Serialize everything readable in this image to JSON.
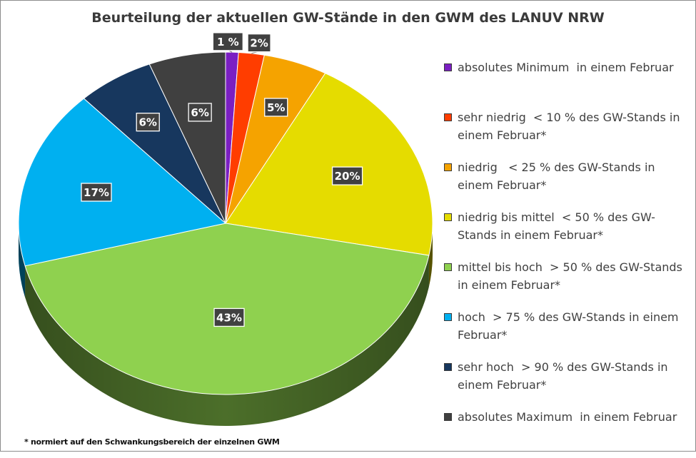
{
  "chart_data": {
    "type": "pie",
    "title": "Beurteilung der aktuellen GW-Stände in den GWM des LANUV NRW",
    "footnote": "* normiert auf den Schwankungsbereich der einzelnen GWM",
    "legend_position": "right",
    "slices": [
      {
        "label": "absolutes Minimum  in einem Februar",
        "value": 1,
        "data_label": "1 %",
        "color": "#7b1fc2"
      },
      {
        "label": "sehr niedrig  < 10 % des GW-Stands in einem Februar*",
        "value": 2,
        "data_label": "2%",
        "color": "#ff3d00"
      },
      {
        "label": "niedrig   < 25 % des GW-Stands in einem Februar*",
        "value": 5,
        "data_label": "5%",
        "color": "#f5a300"
      },
      {
        "label": "niedrig bis mittel  < 50 % des GW-Stands in einem Februar*",
        "value": 20,
        "data_label": "20%",
        "color": "#e5dc00"
      },
      {
        "label": "mittel bis hoch  > 50 % des GW-Stands in einem Februar*",
        "value": 43,
        "data_label": "43%",
        "color": "#8fd14f"
      },
      {
        "label": "hoch  > 75 % des GW-Stands in einem Februar*",
        "value": 17,
        "data_label": "17%",
        "color": "#00b0f0"
      },
      {
        "label": "sehr hoch  > 90 % des GW-Stands in einem Februar*",
        "value": 6,
        "data_label": "6%",
        "color": "#17375e"
      },
      {
        "label": "absolutes Maximum  in einem Februar",
        "value": 6,
        "data_label": "6%",
        "color": "#404040"
      }
    ]
  }
}
